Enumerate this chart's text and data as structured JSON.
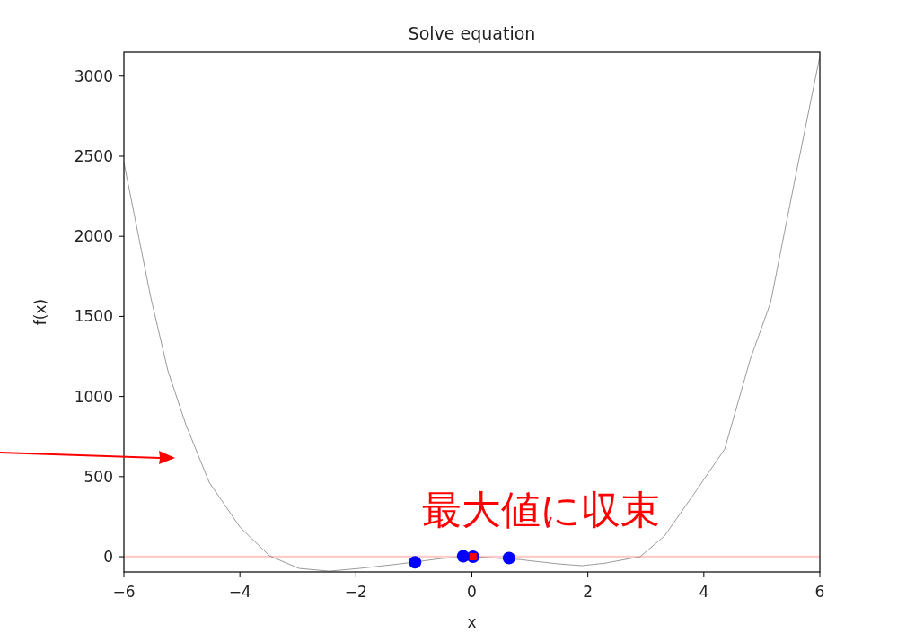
{
  "chart_data": {
    "type": "line",
    "title": "Solve equation",
    "xlabel": "x",
    "ylabel": "f(x)",
    "xlim": [
      -6,
      6
    ],
    "ylim": [
      -95,
      3150
    ],
    "xticks": [
      {
        "value": -6,
        "label": "−6"
      },
      {
        "value": -4,
        "label": "−4"
      },
      {
        "value": -2,
        "label": "−2"
      },
      0,
      2,
      4,
      6
    ],
    "yticks": [
      0,
      500,
      1000,
      1500,
      2000,
      2500,
      3000
    ],
    "grid": false,
    "series": [
      {
        "color": "#808080",
        "x": [
          -6,
          -5.54,
          -5.24,
          -4.93,
          -4.53,
          -4.0,
          -3.49,
          -2.98,
          -2.46,
          -1.94,
          -1.5,
          -1.25,
          -0.5,
          0,
          0.85,
          1.0,
          1.5,
          1.9,
          2.3,
          2.9,
          3.32,
          3.83,
          4.36,
          4.8,
          5.15,
          5.6,
          6
        ],
        "values": [
          2460,
          1624,
          1159,
          823,
          465,
          185,
          6,
          -73,
          -90,
          -73,
          -55,
          -45,
          -10,
          0,
          -18,
          -25,
          -45,
          -56,
          -40,
          0,
          129,
          392,
          672,
          1232,
          1585,
          2408,
          3124
        ]
      },
      {
        "type": "scatter",
        "color": "#0000ff",
        "marker": "circle",
        "x": [
          -0.98,
          -0.15,
          0.02,
          0.64
        ],
        "values": [
          -35,
          3,
          0,
          -8
        ]
      },
      {
        "type": "scatter",
        "color": "#ff0000",
        "marker": "square",
        "x": [
          0.02
        ],
        "values": [
          0
        ]
      }
    ],
    "ref_lines": [
      {
        "axis": "y",
        "value": 0,
        "color": "#ffcccc"
      }
    ],
    "annotations": [
      "最大値に収束"
    ]
  }
}
